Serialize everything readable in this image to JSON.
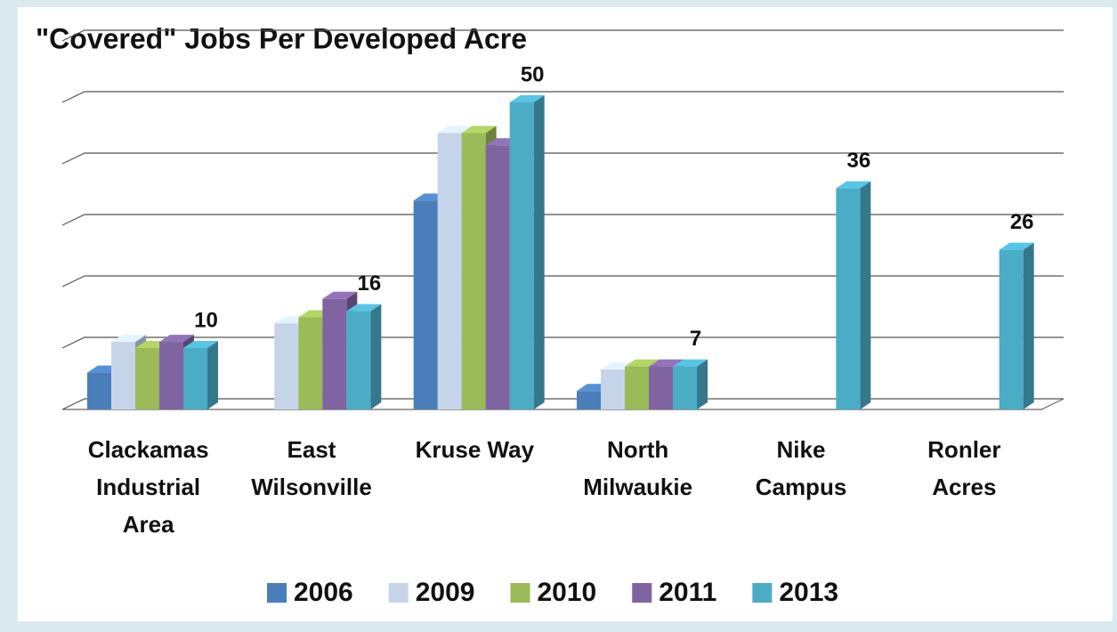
{
  "chart_data": {
    "type": "bar3d",
    "title": "\"Covered\" Jobs Per Developed Acre",
    "categories": [
      "Clackamas Industrial Area",
      "East Wilsonville",
      "Kruse Way",
      "North Milwaukie",
      "Nike Campus",
      "Ronler Acres"
    ],
    "series": [
      {
        "name": "2006",
        "color": "#4a7ebb",
        "values": [
          6,
          null,
          34,
          3,
          null,
          null
        ]
      },
      {
        "name": "2009",
        "color": "#c6d4ea",
        "values": [
          11,
          14,
          45,
          6.5,
          null,
          null
        ]
      },
      {
        "name": "2010",
        "color": "#9bbb59",
        "values": [
          10,
          15,
          45,
          7,
          null,
          null
        ]
      },
      {
        "name": "2011",
        "color": "#8064a2",
        "values": [
          11,
          18,
          43,
          7,
          null,
          null
        ]
      },
      {
        "name": "2013",
        "color": "#4bacc6",
        "values": [
          10,
          16,
          50,
          7,
          36,
          26
        ],
        "data_labels": true
      }
    ],
    "ylim": [
      0,
      60
    ],
    "yticks": [
      0,
      10,
      20,
      30,
      40,
      50,
      60
    ],
    "grid": true,
    "legend": "bottom"
  }
}
